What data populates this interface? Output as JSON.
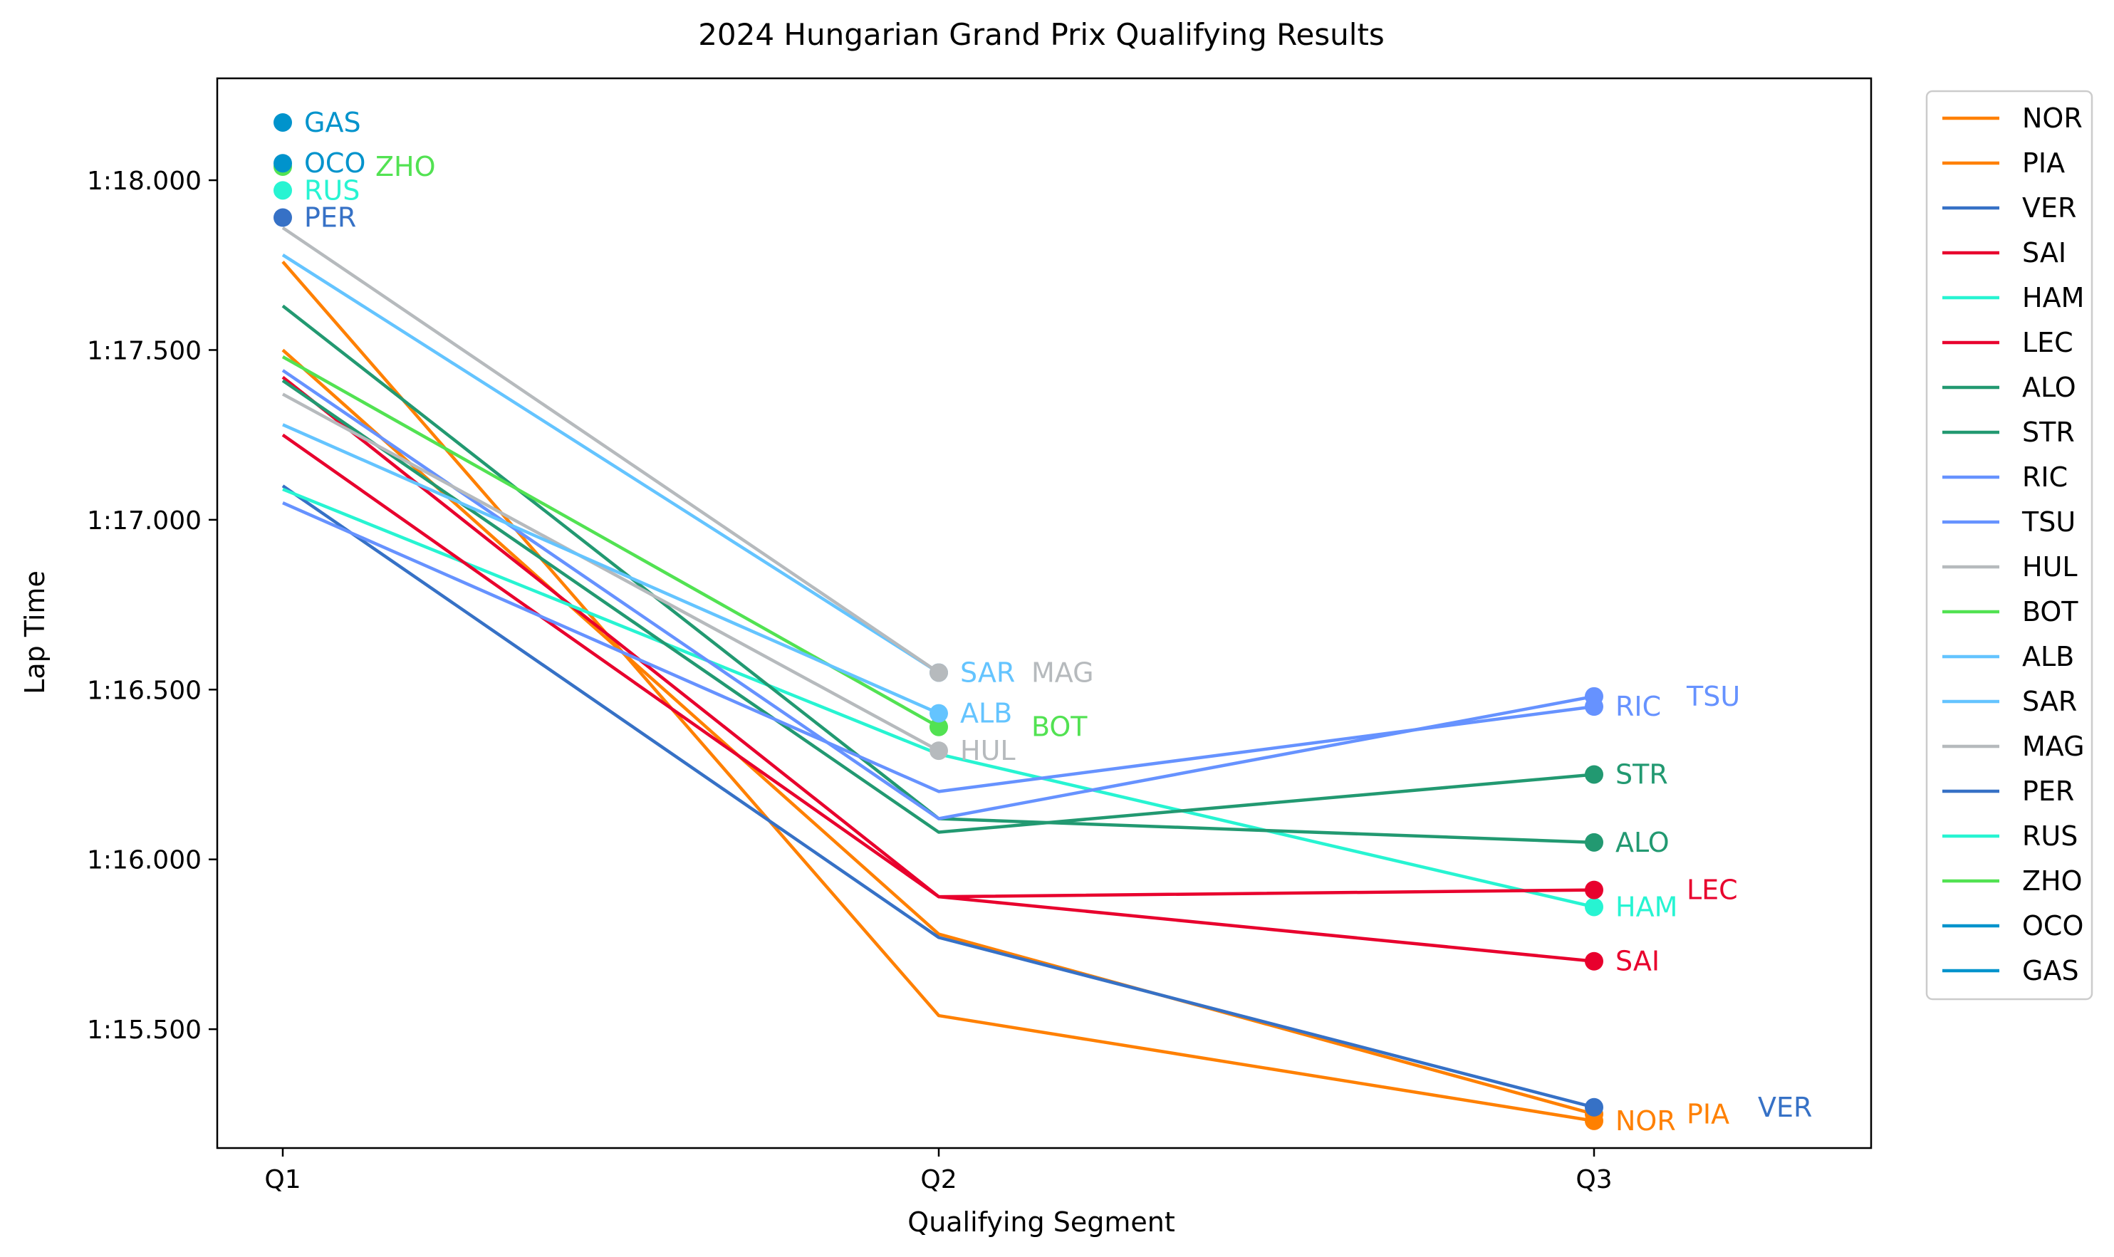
{
  "chart_data": {
    "type": "line",
    "title": "2024 Hungarian Grand Prix Qualifying Results",
    "xlabel": "Qualifying Segment",
    "ylabel": "Lap Time",
    "categories": [
      "Q1",
      "Q2",
      "Q3"
    ],
    "ylim": [
      75.15,
      78.3
    ],
    "yticks": [
      75.5,
      76.0,
      76.5,
      77.0,
      77.5,
      78.0
    ],
    "ytick_labels": [
      "1:15.500",
      "1:16.000",
      "1:16.500",
      "1:17.000",
      "1:17.500",
      "1:18.000"
    ],
    "legend_position": "outside-right",
    "series": [
      {
        "name": "NOR",
        "color": "#ff8000",
        "values": [
          77.76,
          75.54,
          75.23
        ]
      },
      {
        "name": "PIA",
        "color": "#ff8000",
        "values": [
          77.5,
          75.78,
          75.25
        ]
      },
      {
        "name": "VER",
        "color": "#3671c6",
        "values": [
          77.1,
          75.77,
          75.27
        ]
      },
      {
        "name": "SAI",
        "color": "#e8002d",
        "values": [
          77.42,
          75.89,
          75.7
        ]
      },
      {
        "name": "HAM",
        "color": "#27f4d2",
        "values": [
          77.09,
          76.31,
          75.86
        ]
      },
      {
        "name": "LEC",
        "color": "#e8002d",
        "values": [
          77.25,
          75.89,
          75.91
        ]
      },
      {
        "name": "ALO",
        "color": "#229971",
        "values": [
          77.63,
          76.12,
          76.05
        ]
      },
      {
        "name": "STR",
        "color": "#229971",
        "values": [
          77.41,
          76.08,
          76.25
        ]
      },
      {
        "name": "RIC",
        "color": "#6692ff",
        "values": [
          77.05,
          76.2,
          76.45
        ]
      },
      {
        "name": "TSU",
        "color": "#6692ff",
        "values": [
          77.44,
          76.12,
          76.48
        ]
      },
      {
        "name": "HUL",
        "color": "#b6babd",
        "values": [
          77.37,
          76.32,
          null
        ]
      },
      {
        "name": "BOT",
        "color": "#52e252",
        "values": [
          77.48,
          76.39,
          null
        ]
      },
      {
        "name": "ALB",
        "color": "#64c4ff",
        "values": [
          77.28,
          76.43,
          null
        ]
      },
      {
        "name": "SAR",
        "color": "#64c4ff",
        "values": [
          77.78,
          76.55,
          null
        ]
      },
      {
        "name": "MAG",
        "color": "#b6babd",
        "values": [
          77.86,
          76.55,
          null
        ]
      },
      {
        "name": "PER",
        "color": "#3671c6",
        "values": [
          77.89,
          null,
          null
        ]
      },
      {
        "name": "RUS",
        "color": "#27f4d2",
        "values": [
          77.97,
          null,
          null
        ]
      },
      {
        "name": "ZHO",
        "color": "#52e252",
        "values": [
          78.04,
          null,
          null
        ]
      },
      {
        "name": "OCO",
        "color": "#0093cc",
        "values": [
          78.05,
          null,
          null
        ]
      },
      {
        "name": "GAS",
        "color": "#0093cc",
        "values": [
          78.17,
          null,
          null
        ]
      }
    ]
  }
}
